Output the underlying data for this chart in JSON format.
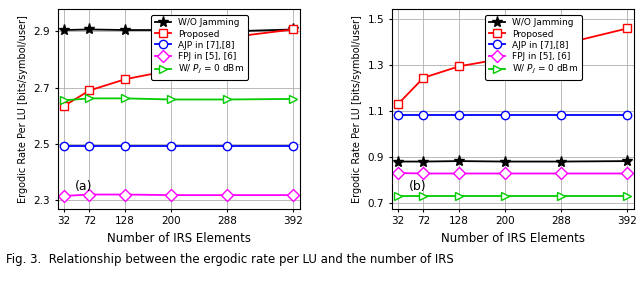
{
  "x": [
    32,
    72,
    128,
    200,
    288,
    392
  ],
  "subplot_a": {
    "title": "(a)",
    "ylim": [
      2.27,
      2.98
    ],
    "yticks": [
      2.3,
      2.5,
      2.7,
      2.9
    ],
    "ylabel": "Ergodic Rate Per LU [bits/symbol/user]",
    "xlabel": "Number of IRS Elements",
    "wo_jamming": [
      2.905,
      2.907,
      2.905,
      2.905,
      2.9,
      2.907
    ],
    "proposed": [
      2.635,
      2.69,
      2.73,
      2.762,
      2.878,
      2.907
    ],
    "ajp": [
      2.492,
      2.492,
      2.492,
      2.492,
      2.492,
      2.492
    ],
    "fpj": [
      2.315,
      2.32,
      2.32,
      2.318,
      2.318,
      2.318
    ],
    "wt_pj": [
      2.655,
      2.662,
      2.662,
      2.658,
      2.658,
      2.66
    ]
  },
  "subplot_b": {
    "title": "(b)",
    "ylim": [
      0.675,
      1.545
    ],
    "yticks": [
      0.7,
      0.9,
      1.1,
      1.3,
      1.5
    ],
    "ylabel": "Ergodic Rate Per LU [bits/symbol/user]",
    "xlabel": "Number of IRS Elements",
    "wo_jamming": [
      0.88,
      0.88,
      0.882,
      0.88,
      0.88,
      0.882
    ],
    "proposed": [
      1.13,
      1.245,
      1.295,
      1.33,
      1.39,
      1.46
    ],
    "ajp": [
      1.082,
      1.082,
      1.082,
      1.082,
      1.082,
      1.082
    ],
    "fpj": [
      0.83,
      0.828,
      0.828,
      0.828,
      0.828,
      0.828
    ],
    "wt_pj": [
      0.728,
      0.728,
      0.728,
      0.728,
      0.728,
      0.728
    ]
  },
  "legend_labels": [
    "W/O Jamming",
    "Proposed",
    "AJP in [7],[8]",
    "FPJ in [5], [6]",
    "W/ $P_J$ = 0 dBm"
  ],
  "colors": {
    "wo_jamming": "#000000",
    "proposed": "#ff0000",
    "ajp": "#0000ff",
    "fpj": "#ff00ff",
    "wt_pj": "#00cc00"
  },
  "markers": {
    "wo_jamming": "*",
    "proposed": "s",
    "ajp": "o",
    "fpj": "D",
    "wt_pj": ">"
  },
  "caption": "Fig. 3.  Relationship between the ergodic rate per LU and the number of IRS"
}
